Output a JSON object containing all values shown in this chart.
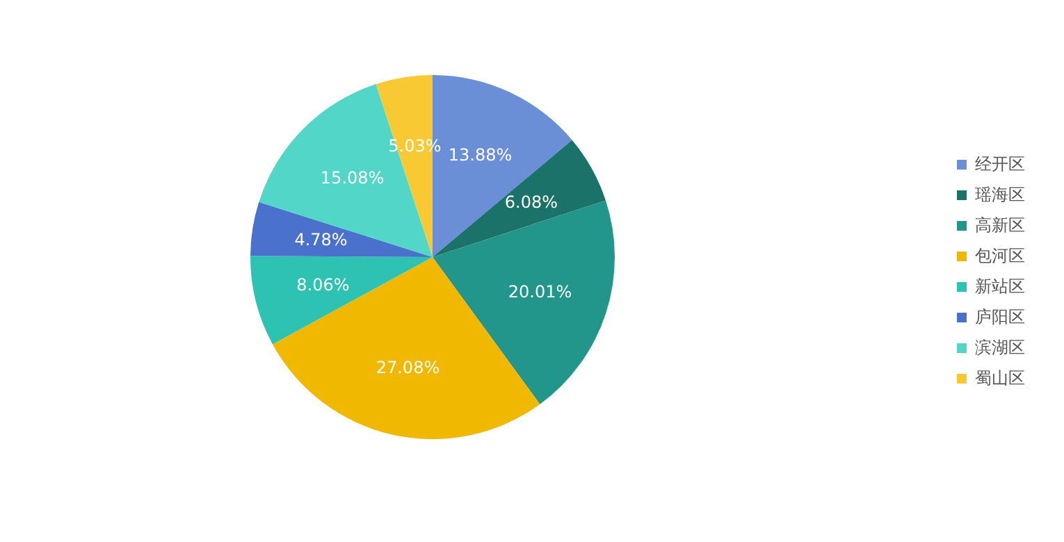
{
  "chart_data": {
    "type": "pie",
    "categories": [
      "经开区",
      "瑶海区",
      "高新区",
      "包河区",
      "新站区",
      "庐阳区",
      "滨湖区",
      "蜀山区"
    ],
    "values": [
      13.88,
      6.08,
      20.01,
      27.08,
      8.06,
      4.78,
      15.08,
      5.03
    ],
    "value_labels": [
      "13.88%",
      "6.08%",
      "20.01%",
      "27.08%",
      "8.06%",
      "4.78%",
      "15.08%",
      "5.03%"
    ],
    "colors": [
      "#6b8fd6",
      "#1b7268",
      "#22968a",
      "#f0b800",
      "#2ec2b2",
      "#4a72cc",
      "#52d6c8",
      "#f9c933"
    ],
    "legend": "right"
  }
}
